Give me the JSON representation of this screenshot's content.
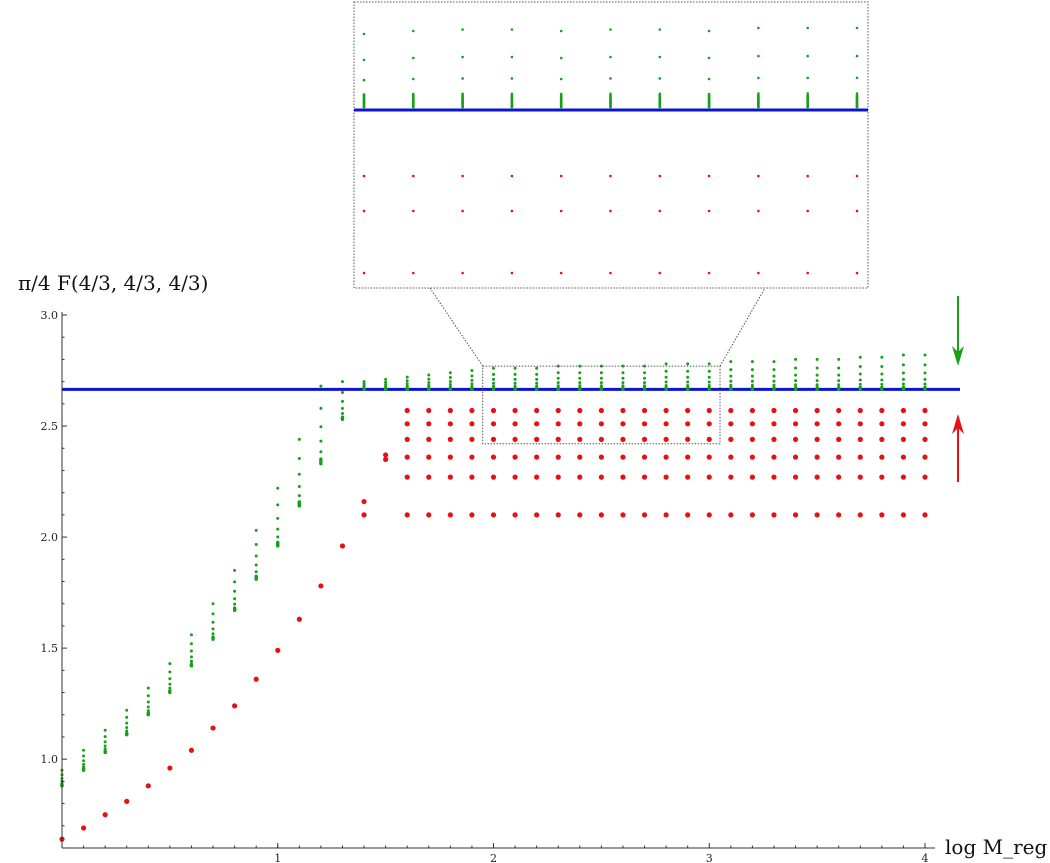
{
  "chart_data": {
    "type": "scatter",
    "title": "",
    "xlabel": "log M_reg",
    "ylabel": "π/4 F(4/3, 4/3, 4/3)",
    "xlim": [
      0,
      4
    ],
    "ylim": [
      0.6,
      3.0
    ],
    "x_ticks": [
      "1",
      "2",
      "3",
      "4"
    ],
    "y_ticks": [
      "1.0",
      "1.5",
      "2.0",
      "2.5",
      "3.0"
    ],
    "grid": false,
    "legend": "none",
    "reference_line": {
      "y": 2.665,
      "color": "#0b14d0"
    },
    "colors": {
      "upper": "#18a018",
      "lower": "#e81010",
      "reference": "#0b14d0",
      "arrow_down": "#18a018",
      "arrow_up": "#e81010"
    },
    "series": [
      {
        "marker": "small-dot",
        "x": [
          0,
          0.1,
          0.2,
          0.3,
          0.4,
          0.5,
          0.6,
          0.7,
          0.8,
          0.9,
          1.0,
          1.1,
          1.2,
          1.3,
          1.4,
          1.5,
          1.6,
          1.7,
          1.8,
          1.9,
          2.0,
          2.1,
          2.2,
          2.3,
          2.4,
          2.5,
          2.6,
          2.7,
          2.8,
          2.9,
          3.0,
          3.1,
          3.2,
          3.3,
          3.4,
          3.5,
          3.6,
          3.7,
          3.8,
          3.9,
          4.0
        ],
        "y_min": [
          0.88,
          0.95,
          1.03,
          1.11,
          1.2,
          1.3,
          1.42,
          1.54,
          1.67,
          1.81,
          1.96,
          2.14,
          2.33,
          2.53,
          2.665,
          2.665,
          2.665,
          2.665,
          2.665,
          2.665,
          2.665,
          2.665,
          2.665,
          2.665,
          2.665,
          2.665,
          2.665,
          2.665,
          2.665,
          2.665,
          2.665,
          2.665,
          2.665,
          2.665,
          2.665,
          2.665,
          2.665,
          2.665,
          2.665,
          2.665,
          2.665
        ],
        "y_max": [
          0.95,
          1.04,
          1.13,
          1.22,
          1.32,
          1.43,
          1.56,
          1.7,
          1.85,
          2.03,
          2.22,
          2.44,
          2.68,
          2.7,
          2.7,
          2.71,
          2.72,
          2.73,
          2.74,
          2.75,
          2.76,
          2.76,
          2.76,
          2.77,
          2.77,
          2.77,
          2.77,
          2.77,
          2.78,
          2.78,
          2.78,
          2.79,
          2.79,
          2.79,
          2.8,
          2.8,
          2.8,
          2.81,
          2.81,
          2.82,
          2.82
        ]
      },
      {
        "marker": "large-dot",
        "x": [
          0,
          0.1,
          0.2,
          0.3,
          0.4,
          0.5,
          0.6,
          0.7,
          0.8,
          0.9,
          1.0,
          1.1,
          1.2,
          1.3,
          1.4,
          1.4,
          1.5,
          1.5
        ],
        "y": [
          0.64,
          0.69,
          0.75,
          0.81,
          0.88,
          0.96,
          1.04,
          1.14,
          1.24,
          1.36,
          1.49,
          1.63,
          1.78,
          1.96,
          2.16,
          2.1,
          2.37,
          2.35
        ]
      },
      {
        "marker": "large-dot",
        "x_range": [
          1.6,
          4.0
        ],
        "x_step": 0.1,
        "y_levels": [
          2.1,
          2.27,
          2.36,
          2.44,
          2.51,
          2.57
        ]
      }
    ],
    "inset": {
      "zoom_xlim": [
        1.95,
        3.05
      ],
      "zoom_ylim": [
        2.42,
        2.77
      ],
      "x": [
        2.0,
        2.25,
        2.5,
        2.75,
        3.0
      ],
      "upper_cluster_tops": [
        2.72,
        2.73,
        2.735,
        2.735,
        2.73,
        2.735,
        2.735,
        2.73,
        2.74,
        2.74,
        2.74
      ],
      "lower_levels": [
        2.44,
        2.51,
        2.57
      ]
    },
    "arrows": [
      {
        "direction": "down",
        "color_key": "arrow_down"
      },
      {
        "direction": "up",
        "color_key": "arrow_up"
      }
    ]
  }
}
